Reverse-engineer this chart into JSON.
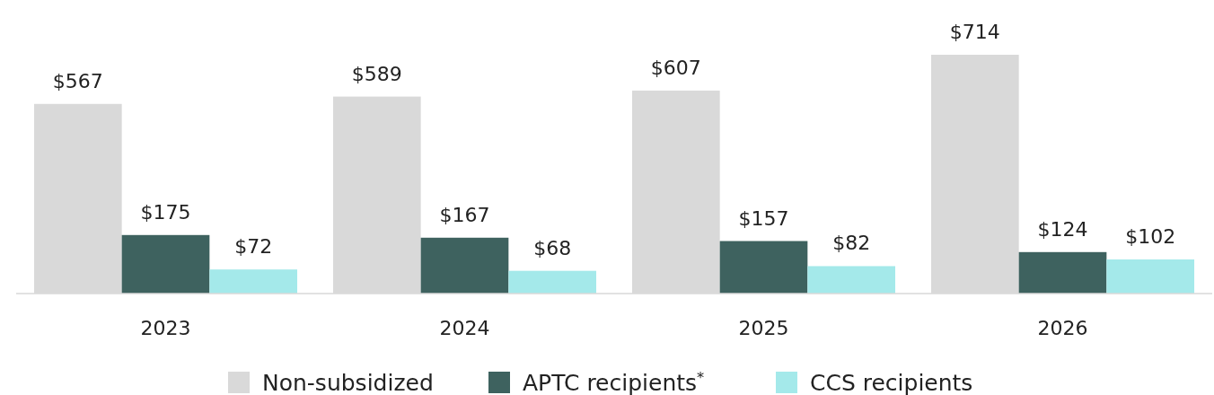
{
  "chart_data": {
    "type": "bar",
    "categories": [
      "2023",
      "2024",
      "2025",
      "2026"
    ],
    "series": [
      {
        "name": "Non-subsidized",
        "color": "#d9d9d9",
        "values": [
          567,
          589,
          607,
          714
        ],
        "value_labels": [
          "$567",
          "$589",
          "$607",
          "$714"
        ]
      },
      {
        "name": "APTC recipients$^{*}$",
        "color": "#3e625f",
        "values": [
          175,
          167,
          157,
          124
        ],
        "value_labels": [
          "$175",
          "$167",
          "$157",
          "$124"
        ]
      },
      {
        "name": "CCS recipients",
        "color": "#a4e9ea",
        "values": [
          72,
          68,
          82,
          102
        ],
        "value_labels": [
          "$72",
          "$68",
          "$82",
          "$102"
        ]
      }
    ],
    "legend": "bottom"
  }
}
